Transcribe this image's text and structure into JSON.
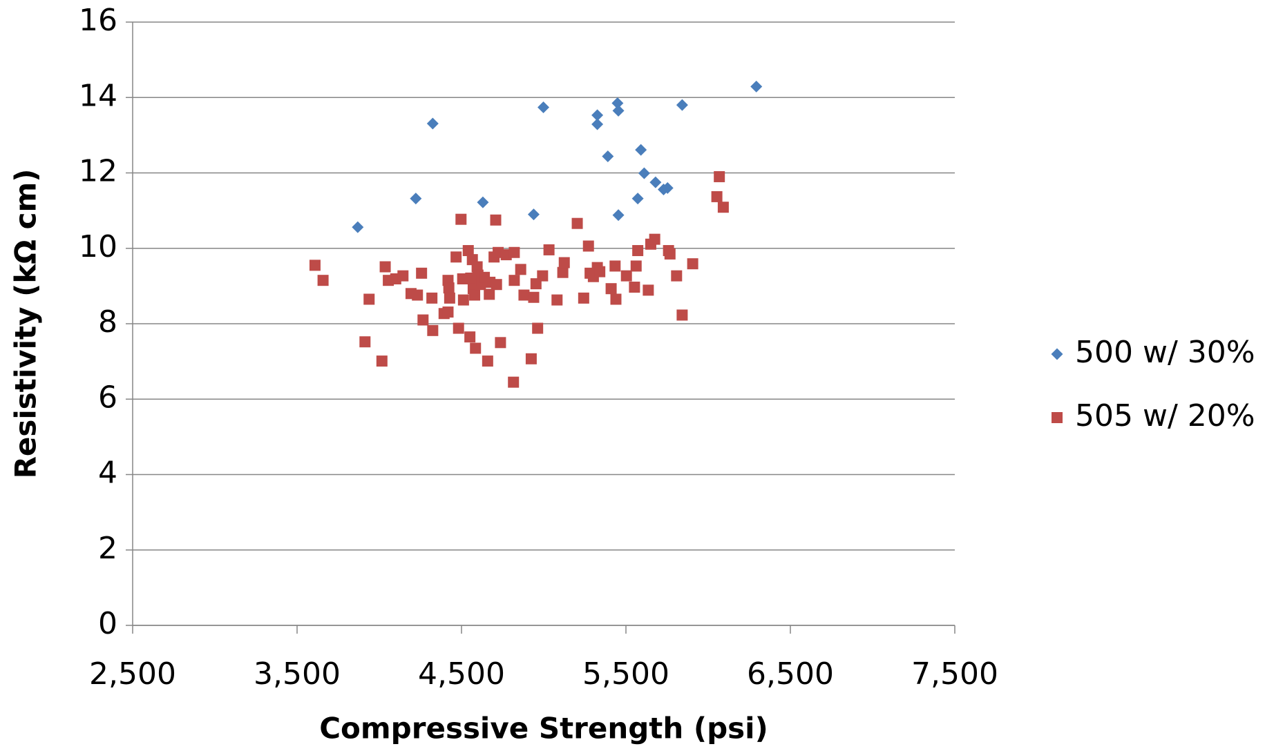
{
  "chart_data": {
    "type": "scatter",
    "x_label": "Compressive Strength (psi)",
    "y_label": "Resistivity (kΩ cm)",
    "xlim": [
      2500,
      7500
    ],
    "xticks": [
      {
        "value": 2500,
        "label": "2,500"
      },
      {
        "value": 3500,
        "label": "3,500"
      },
      {
        "value": 4500,
        "label": "4,500"
      },
      {
        "value": 5500,
        "label": "5,500"
      },
      {
        "value": 6500,
        "label": "6,500"
      },
      {
        "value": 7500,
        "label": "7,500"
      }
    ],
    "ylim": [
      0,
      16
    ],
    "yticks": [
      0,
      2,
      4,
      6,
      8,
      10,
      12,
      14,
      16
    ],
    "grid": true,
    "legend": "right",
    "series": [
      {
        "name": "500 w/ 30%",
        "color": "#4a7ebb",
        "marker": "diamond",
        "x": [
          3869,
          4222,
          4325,
          4630,
          4939,
          4998,
          5326,
          5326,
          5390,
          5449,
          5454,
          5454,
          5591,
          5572,
          5611,
          5680,
          5729,
          5753,
          5842,
          6293
        ],
        "y": [
          10.56,
          11.32,
          13.31,
          11.22,
          10.9,
          13.74,
          13.53,
          13.29,
          12.44,
          13.85,
          13.65,
          10.88,
          12.61,
          11.32,
          11.99,
          11.75,
          11.56,
          11.6,
          13.8,
          14.29
        ]
      },
      {
        "name": "505 w/ 20%",
        "color": "#be4b48",
        "marker": "square",
        "x": [
          3609,
          3658,
          3913,
          3938,
          4016,
          4036,
          4055,
          4100,
          4144,
          4193,
          4232,
          4257,
          4266,
          4320,
          4325,
          4394,
          4418,
          4418,
          4423,
          4428,
          4467,
          4482,
          4497,
          4507,
          4512,
          4541,
          4551,
          4556,
          4566,
          4571,
          4580,
          4585,
          4595,
          4600,
          4615,
          4624,
          4639,
          4659,
          4669,
          4673,
          4698,
          4708,
          4713,
          4723,
          4737,
          4772,
          4816,
          4821,
          4821,
          4860,
          4880,
          4924,
          4939,
          4953,
          4963,
          4993,
          5032,
          5081,
          5116,
          5125,
          5204,
          5243,
          5272,
          5282,
          5302,
          5326,
          5341,
          5410,
          5434,
          5439,
          5503,
          5552,
          5562,
          5572,
          5636,
          5651,
          5675,
          5759,
          5768,
          5808,
          5842,
          5906,
          6053,
          6068,
          6092
        ],
        "y": [
          9.55,
          9.15,
          7.52,
          8.65,
          7.01,
          9.51,
          9.15,
          9.19,
          9.27,
          8.8,
          8.76,
          9.34,
          8.1,
          8.68,
          7.82,
          8.27,
          8.31,
          9.15,
          8.95,
          8.68,
          9.77,
          7.88,
          10.77,
          9.19,
          8.63,
          9.94,
          7.65,
          9.21,
          9.7,
          8.93,
          8.76,
          7.35,
          9.51,
          9.29,
          9.04,
          9.15,
          9.23,
          7.01,
          8.78,
          9.1,
          9.77,
          10.75,
          9.04,
          9.89,
          7.5,
          9.83,
          6.45,
          9.89,
          9.15,
          9.44,
          8.76,
          7.07,
          8.7,
          9.06,
          7.88,
          9.27,
          9.96,
          8.63,
          9.36,
          9.62,
          10.66,
          8.68,
          10.06,
          9.34,
          9.25,
          9.49,
          9.38,
          8.93,
          9.53,
          8.65,
          9.27,
          8.97,
          9.53,
          9.94,
          8.89,
          10.11,
          10.24,
          9.94,
          9.85,
          9.27,
          8.23,
          9.59,
          11.37,
          11.9,
          11.09
        ]
      }
    ]
  }
}
